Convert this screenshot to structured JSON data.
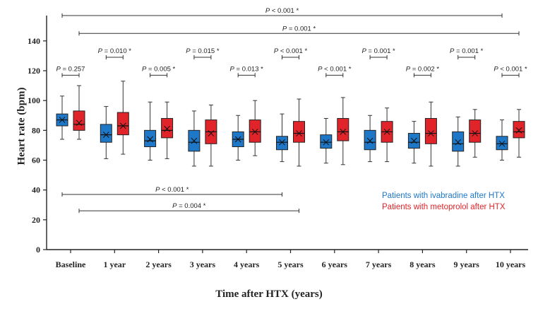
{
  "chart_data": {
    "type": "box",
    "categories": [
      "Baseline",
      "1 year",
      "2 years",
      "3 years",
      "4 years",
      "5 years",
      "6 years",
      "7 years",
      "8 years",
      "9 years",
      "10 years"
    ],
    "xlabel": "Time after HTX (years)",
    "ylabel": "Heart rate (bpm)",
    "ylim": [
      0,
      150
    ],
    "yticks": [
      "0",
      "20",
      "40",
      "60",
      "80",
      "100",
      "120",
      "140"
    ],
    "grid": false,
    "legend_position": "lower-right",
    "series": [
      {
        "name": "Patients with ivabradine after HTX",
        "color": "#1f77c8",
        "boxes": [
          {
            "min": 74,
            "q1": 83,
            "median": 87,
            "q3": 91,
            "max": 103,
            "mean": 87
          },
          {
            "min": 61,
            "q1": 72,
            "median": 77,
            "q3": 84,
            "max": 96,
            "mean": 77
          },
          {
            "min": 60,
            "q1": 69,
            "median": 73,
            "q3": 80,
            "max": 99,
            "mean": 74
          },
          {
            "min": 56,
            "q1": 66,
            "median": 72,
            "q3": 80,
            "max": 93,
            "mean": 73
          },
          {
            "min": 60,
            "q1": 69,
            "median": 74,
            "q3": 79,
            "max": 90,
            "mean": 74
          },
          {
            "min": 59,
            "q1": 67,
            "median": 72,
            "q3": 76,
            "max": 91,
            "mean": 72
          },
          {
            "min": 58,
            "q1": 68,
            "median": 72,
            "q3": 77,
            "max": 88,
            "mean": 72
          },
          {
            "min": 59,
            "q1": 67,
            "median": 72,
            "q3": 80,
            "max": 90,
            "mean": 73
          },
          {
            "min": 58,
            "q1": 68,
            "median": 72,
            "q3": 78,
            "max": 86,
            "mean": 73
          },
          {
            "min": 56,
            "q1": 66,
            "median": 71,
            "q3": 79,
            "max": 89,
            "mean": 72
          },
          {
            "min": 60,
            "q1": 67,
            "median": 71,
            "q3": 76,
            "max": 87,
            "mean": 71
          }
        ]
      },
      {
        "name": "Patients with metoprolol after HTX",
        "color": "#e0242a",
        "boxes": [
          {
            "min": 74,
            "q1": 80,
            "median": 84,
            "q3": 93,
            "max": 110,
            "mean": 85
          },
          {
            "min": 64,
            "q1": 77,
            "median": 83,
            "q3": 92,
            "max": 113,
            "mean": 83
          },
          {
            "min": 61,
            "q1": 75,
            "median": 80,
            "q3": 88,
            "max": 99,
            "mean": 81
          },
          {
            "min": 56,
            "q1": 71,
            "median": 79,
            "q3": 87,
            "max": 97,
            "mean": 78
          },
          {
            "min": 63,
            "q1": 72,
            "median": 79,
            "q3": 87,
            "max": 100,
            "mean": 79
          },
          {
            "min": 56,
            "q1": 72,
            "median": 78,
            "q3": 86,
            "max": 101,
            "mean": 78
          },
          {
            "min": 57,
            "q1": 73,
            "median": 79,
            "q3": 88,
            "max": 102,
            "mean": 79
          },
          {
            "min": 59,
            "q1": 72,
            "median": 79,
            "q3": 86,
            "max": 95,
            "mean": 79
          },
          {
            "min": 56,
            "q1": 71,
            "median": 78,
            "q3": 88,
            "max": 99,
            "mean": 78
          },
          {
            "min": 62,
            "q1": 72,
            "median": 78,
            "q3": 87,
            "max": 94,
            "mean": 78
          },
          {
            "min": 62,
            "q1": 75,
            "median": 79,
            "q3": 86,
            "max": 94,
            "mean": 80
          }
        ]
      }
    ],
    "annotations": {
      "top_brackets": [
        {
          "from_category": 0,
          "to_category": 10,
          "from_series": 0,
          "to_series": 0,
          "y": 157,
          "label": "P < 0.001 *"
        },
        {
          "from_category": 0,
          "to_category": 10,
          "from_series": 1,
          "to_series": 1,
          "y": 145,
          "label": "P = 0.001 *"
        }
      ],
      "pair_brackets": [
        {
          "category": 0,
          "y": 117,
          "label": "P = 0.257"
        },
        {
          "category": 1,
          "y": 129,
          "label": "P = 0.010 *"
        },
        {
          "category": 2,
          "y": 117,
          "label": "P = 0.005 *"
        },
        {
          "category": 3,
          "y": 129,
          "label": "P = 0.015 *"
        },
        {
          "category": 4,
          "y": 117,
          "label": "P = 0.013 *"
        },
        {
          "category": 5,
          "y": 129,
          "label": "P < 0.001 *"
        },
        {
          "category": 6,
          "y": 117,
          "label": "P < 0.001 *"
        },
        {
          "category": 7,
          "y": 129,
          "label": "P = 0.001 *"
        },
        {
          "category": 8,
          "y": 117,
          "label": "P = 0.002 *"
        },
        {
          "category": 9,
          "y": 129,
          "label": "P = 0.001 *"
        },
        {
          "category": 10,
          "y": 117,
          "label": "P < 0.001 *"
        }
      ],
      "lower_brackets": [
        {
          "from_category": 0,
          "to_category": 5,
          "from_series": 0,
          "to_series": 0,
          "y": 37,
          "label": "P < 0.001 *"
        },
        {
          "from_category": 0,
          "to_category": 5,
          "from_series": 1,
          "to_series": 1,
          "y": 26,
          "label": "P = 0.004 *"
        }
      ]
    }
  }
}
